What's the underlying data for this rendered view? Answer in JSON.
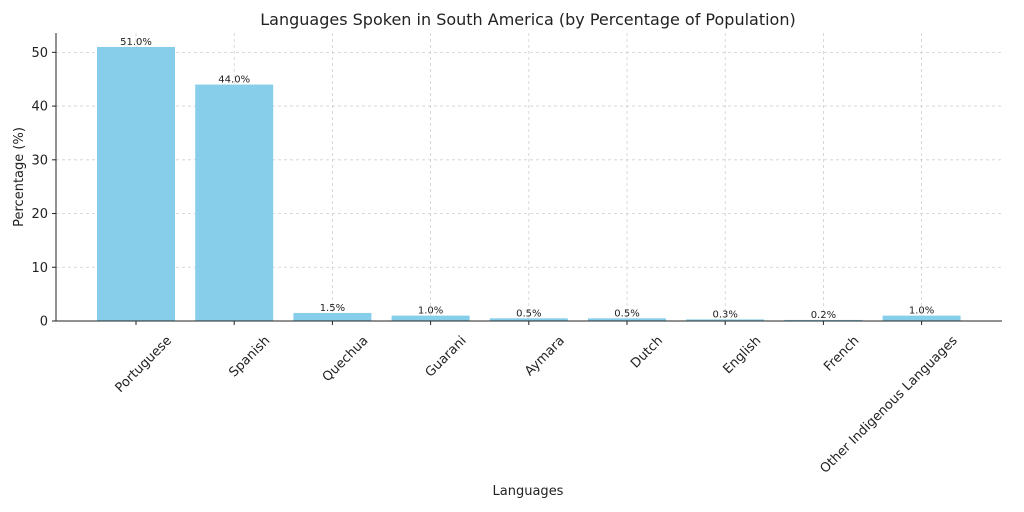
{
  "chart_data": {
    "type": "bar",
    "title": "Languages Spoken in South America (by Percentage of Population)",
    "xlabel": "Languages",
    "ylabel": "Percentage (%)",
    "categories": [
      "Portuguese",
      "Spanish",
      "Quechua",
      "Guarani",
      "Aymara",
      "Dutch",
      "English",
      "French",
      "Other Indigenous Languages"
    ],
    "values": [
      51.0,
      44.0,
      1.5,
      1.0,
      0.5,
      0.5,
      0.3,
      0.2,
      1.0
    ],
    "data_labels": [
      "51.0%",
      "44.0%",
      "1.5%",
      "1.0%",
      "0.5%",
      "0.5%",
      "0.3%",
      "0.2%",
      "1.0%"
    ],
    "yticks": [
      0,
      10,
      20,
      30,
      40,
      50
    ],
    "ylim": [
      0,
      53.6
    ],
    "grid": true,
    "colors": {
      "bar": "#87ceeb"
    }
  }
}
